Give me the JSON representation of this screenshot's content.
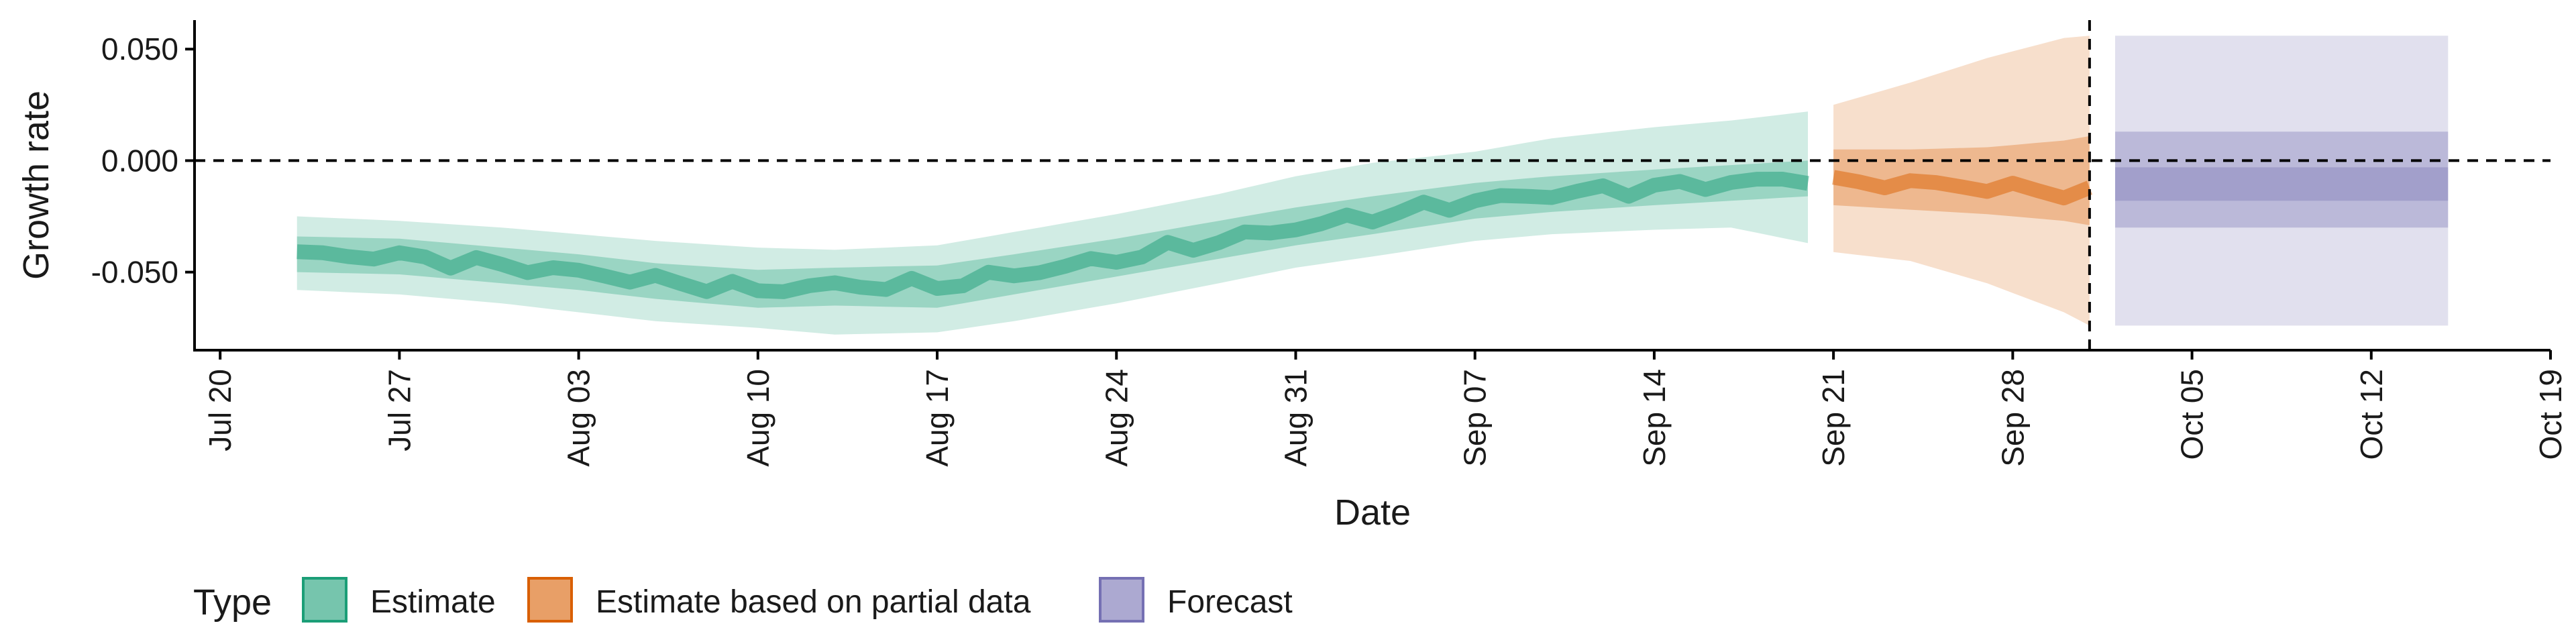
{
  "chart_data": {
    "type": "area",
    "xlabel": "Date",
    "ylabel": "Growth rate",
    "ylim": [
      -0.085,
      0.063
    ],
    "xlim": [
      "2020-07-19",
      "2020-10-19"
    ],
    "x_ticks": [
      "Jul 20",
      "Jul 27",
      "Aug 03",
      "Aug 10",
      "Aug 17",
      "Aug 24",
      "Aug 31",
      "Sep 07",
      "Sep 14",
      "Sep 21",
      "Sep 28",
      "Oct 05",
      "Oct 12",
      "Oct 19"
    ],
    "x_tick_dates": [
      "2020-07-20",
      "2020-07-27",
      "2020-08-03",
      "2020-08-10",
      "2020-08-17",
      "2020-08-24",
      "2020-08-31",
      "2020-09-07",
      "2020-09-14",
      "2020-09-21",
      "2020-09-28",
      "2020-10-05",
      "2020-10-12",
      "2020-10-19"
    ],
    "y_ticks": [
      0.05,
      0.0,
      -0.05
    ],
    "y_tick_labels": [
      "0.050",
      "0.000",
      "-0.050"
    ],
    "hline_y": 0.0,
    "vline_date": "2020-10-01",
    "legend_position": "bottom",
    "legend": {
      "title": "Type",
      "items": [
        {
          "label": "Estimate",
          "color": "#1b9e77"
        },
        {
          "label": "Estimate based on partial data",
          "color": "#d95f02"
        },
        {
          "label": "Forecast",
          "color": "#7570b3"
        }
      ]
    },
    "series": [
      {
        "name": "Estimate",
        "color": "#1b9e77",
        "points": [
          {
            "date": "2020-07-23",
            "median": -0.042,
            "lower_50": -0.05,
            "upper_50": -0.034,
            "lower_90": -0.058,
            "upper_90": -0.025
          },
          {
            "date": "2020-07-27",
            "median": -0.043,
            "lower_50": -0.051,
            "upper_50": -0.035,
            "lower_90": -0.06,
            "upper_90": -0.027
          },
          {
            "date": "2020-07-31",
            "median": -0.047,
            "lower_50": -0.055,
            "upper_50": -0.039,
            "lower_90": -0.064,
            "upper_90": -0.03
          },
          {
            "date": "2020-08-03",
            "median": -0.05,
            "lower_50": -0.058,
            "upper_50": -0.042,
            "lower_90": -0.068,
            "upper_90": -0.033
          },
          {
            "date": "2020-08-06",
            "median": -0.054,
            "lower_50": -0.062,
            "upper_50": -0.046,
            "lower_90": -0.072,
            "upper_90": -0.036
          },
          {
            "date": "2020-08-10",
            "median": -0.058,
            "lower_50": -0.066,
            "upper_50": -0.049,
            "lower_90": -0.075,
            "upper_90": -0.039
          },
          {
            "date": "2020-08-13",
            "median": -0.056,
            "lower_50": -0.065,
            "upper_50": -0.048,
            "lower_90": -0.078,
            "upper_90": -0.04
          },
          {
            "date": "2020-08-17",
            "median": -0.056,
            "lower_50": -0.066,
            "upper_50": -0.047,
            "lower_90": -0.077,
            "upper_90": -0.038
          },
          {
            "date": "2020-08-20",
            "median": -0.051,
            "lower_50": -0.06,
            "upper_50": -0.042,
            "lower_90": -0.072,
            "upper_90": -0.032
          },
          {
            "date": "2020-08-24",
            "median": -0.044,
            "lower_50": -0.052,
            "upper_50": -0.035,
            "lower_90": -0.064,
            "upper_90": -0.024
          },
          {
            "date": "2020-08-28",
            "median": -0.036,
            "lower_50": -0.044,
            "upper_50": -0.027,
            "lower_90": -0.055,
            "upper_90": -0.015
          },
          {
            "date": "2020-08-31",
            "median": -0.03,
            "lower_50": -0.038,
            "upper_50": -0.021,
            "lower_90": -0.048,
            "upper_90": -0.007
          },
          {
            "date": "2020-09-03",
            "median": -0.025,
            "lower_50": -0.033,
            "upper_50": -0.016,
            "lower_90": -0.043,
            "upper_90": -0.001
          },
          {
            "date": "2020-09-07",
            "median": -0.018,
            "lower_50": -0.026,
            "upper_50": -0.01,
            "lower_90": -0.036,
            "upper_90": 0.004
          },
          {
            "date": "2020-09-10",
            "median": -0.015,
            "lower_50": -0.023,
            "upper_50": -0.007,
            "lower_90": -0.033,
            "upper_90": 0.01
          },
          {
            "date": "2020-09-14",
            "median": -0.012,
            "lower_50": -0.02,
            "upper_50": -0.004,
            "lower_90": -0.031,
            "upper_90": 0.015
          },
          {
            "date": "2020-09-17",
            "median": -0.01,
            "lower_50": -0.018,
            "upper_50": -0.002,
            "lower_90": -0.03,
            "upper_90": 0.018
          },
          {
            "date": "2020-09-20",
            "median": -0.008,
            "lower_50": -0.016,
            "upper_50": 0.0,
            "lower_90": -0.037,
            "upper_90": 0.022
          }
        ]
      },
      {
        "name": "Estimate based on partial data",
        "color": "#d95f02",
        "points": [
          {
            "date": "2020-09-21",
            "median": -0.01,
            "lower_50": -0.02,
            "upper_50": 0.005,
            "lower_90": -0.041,
            "upper_90": 0.025
          },
          {
            "date": "2020-09-24",
            "median": -0.01,
            "lower_50": -0.022,
            "upper_50": 0.005,
            "lower_90": -0.045,
            "upper_90": 0.035
          },
          {
            "date": "2020-09-27",
            "median": -0.012,
            "lower_50": -0.024,
            "upper_50": 0.006,
            "lower_90": -0.055,
            "upper_90": 0.046
          },
          {
            "date": "2020-09-30",
            "median": -0.014,
            "lower_50": -0.027,
            "upper_50": 0.009,
            "lower_90": -0.068,
            "upper_90": 0.055
          },
          {
            "date": "2020-10-01",
            "median": -0.015,
            "lower_50": -0.029,
            "upper_50": 0.011,
            "lower_90": -0.074,
            "upper_90": 0.056
          }
        ]
      },
      {
        "name": "Forecast",
        "color": "#7570b3",
        "points": [
          {
            "date": "2020-10-02",
            "median": -0.01,
            "lower_50": -0.018,
            "upper_50": -0.003,
            "lower_outer": -0.03,
            "upper_outer": 0.013,
            "lower_90": -0.074,
            "upper_90": 0.056
          },
          {
            "date": "2020-10-15",
            "median": -0.01,
            "lower_50": -0.018,
            "upper_50": -0.003,
            "lower_outer": -0.03,
            "upper_outer": 0.013,
            "lower_90": -0.074,
            "upper_90": 0.056
          }
        ]
      }
    ]
  }
}
